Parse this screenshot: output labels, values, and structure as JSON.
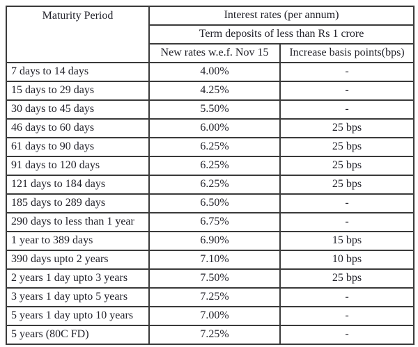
{
  "table": {
    "header": {
      "maturity": "Maturity Period",
      "interest_rates": "Interest rates (per annum)",
      "term_deposits": "Term deposits of less than Rs 1 crore",
      "new_rates": "New rates w.e.f. Nov 15",
      "increase_bps": "Increase basis points(bps)"
    },
    "rows": [
      {
        "period": "7 days to 14 days",
        "rate": "4.00%",
        "bps": "-"
      },
      {
        "period": "15 days to 29 days",
        "rate": "4.25%",
        "bps": "-"
      },
      {
        "period": "30 days to 45 days",
        "rate": "5.50%",
        "bps": "-"
      },
      {
        "period": "46 days to 60 days",
        "rate": "6.00%",
        "bps": "25 bps"
      },
      {
        "period": "61 days to 90 days",
        "rate": "6.25%",
        "bps": "25 bps"
      },
      {
        "period": "91 days to 120 days",
        "rate": "6.25%",
        "bps": "25 bps"
      },
      {
        "period": "121 days to 184 days",
        "rate": "6.25%",
        "bps": "25 bps"
      },
      {
        "period": "185 days to 289 days",
        "rate": "6.50%",
        "bps": "-"
      },
      {
        "period": "290 days to less than 1 year",
        "rate": "6.75%",
        "bps": "-"
      },
      {
        "period": "1 year to 389 days",
        "rate": "6.90%",
        "bps": "15 bps"
      },
      {
        "period": "390 days upto  2 years",
        "rate": "7.10%",
        "bps": "10 bps"
      },
      {
        "period": "2 years 1 day upto 3 years",
        "rate": "7.50%",
        "bps": "25 bps"
      },
      {
        "period": "3 years 1 day upto 5 years",
        "rate": "7.25%",
        "bps": "-"
      },
      {
        "period": "5 years 1 day upto 10 years",
        "rate": "7.00%",
        "bps": "-"
      },
      {
        "period": "5 years (80C FD)",
        "rate": "7.25%",
        "bps": "-"
      }
    ]
  },
  "colors": {
    "border": "#3a3a3a",
    "text": "#22222a",
    "background": "#ffffff"
  },
  "chart_data": {
    "type": "table",
    "title": "Interest rates (per annum)",
    "subtitle": "Term deposits of less than Rs 1 crore",
    "columns": [
      "Maturity Period",
      "New rates w.e.f. Nov 15",
      "Increase basis points(bps)"
    ],
    "rows": [
      [
        "7 days to 14 days",
        "4.00%",
        "-"
      ],
      [
        "15 days to 29 days",
        "4.25%",
        "-"
      ],
      [
        "30 days to 45 days",
        "5.50%",
        "-"
      ],
      [
        "46 days to 60 days",
        "6.00%",
        "25 bps"
      ],
      [
        "61 days to 90 days",
        "6.25%",
        "25 bps"
      ],
      [
        "91 days to 120 days",
        "6.25%",
        "25 bps"
      ],
      [
        "121 days to 184 days",
        "6.25%",
        "25 bps"
      ],
      [
        "185 days to 289 days",
        "6.50%",
        "-"
      ],
      [
        "290 days to less than 1 year",
        "6.75%",
        "-"
      ],
      [
        "1 year to 389 days",
        "6.90%",
        "15 bps"
      ],
      [
        "390 days upto  2 years",
        "7.10%",
        "10 bps"
      ],
      [
        "2 years 1 day upto 3 years",
        "7.50%",
        "25 bps"
      ],
      [
        "3 years 1 day upto 5 years",
        "7.25%",
        "-"
      ],
      [
        "5 years 1 day upto 10 years",
        "7.00%",
        "-"
      ],
      [
        "5 years (80C FD)",
        "7.25%",
        "-"
      ]
    ]
  }
}
